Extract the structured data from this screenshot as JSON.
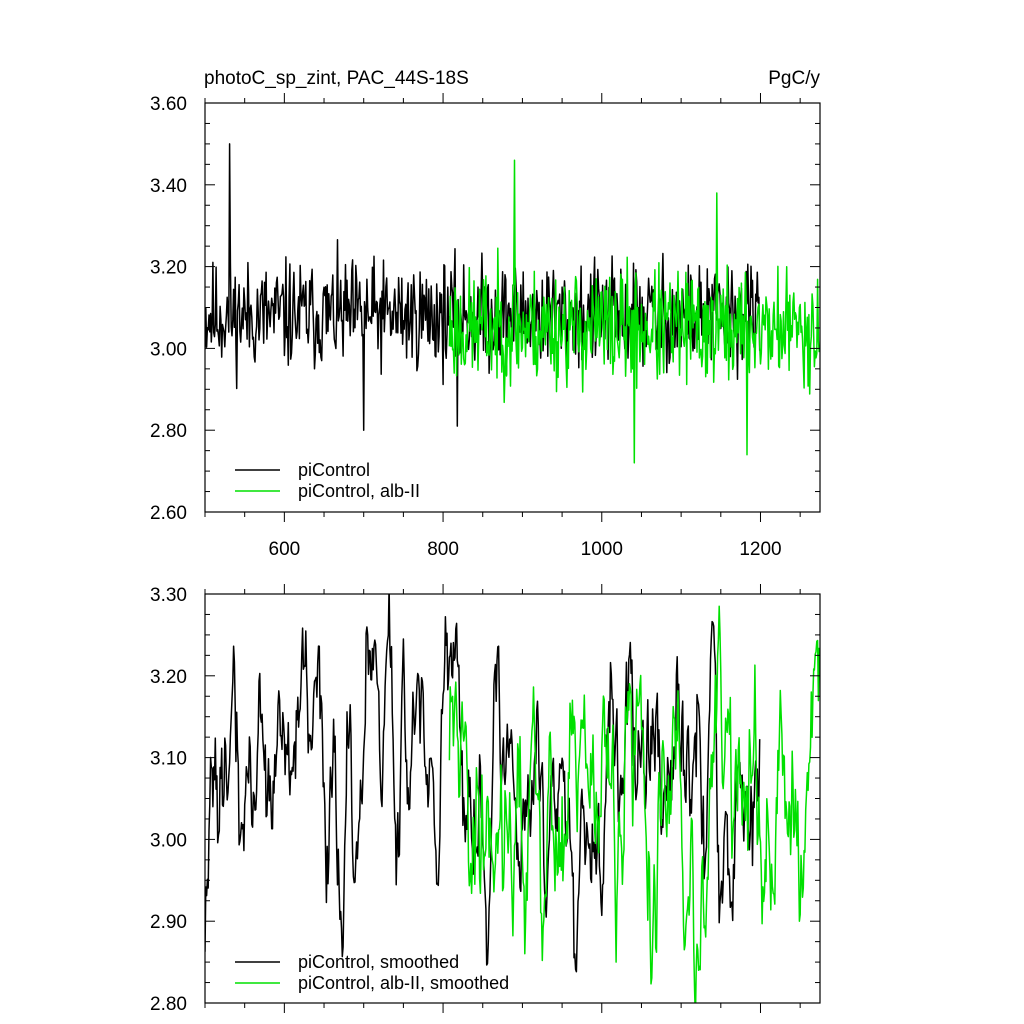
{
  "chart_data": [
    {
      "type": "line",
      "title": "photoC_sp_zint, PAC_44S-18S",
      "units": "PgC/y",
      "xlim": [
        500,
        1275
      ],
      "ylim": [
        2.6,
        3.6
      ],
      "x_ticks": [
        600,
        800,
        1000,
        1200
      ],
      "x_tick_labels": [
        "600",
        "800",
        "1000",
        "1200"
      ],
      "y_ticks": [
        2.6,
        2.8,
        3.0,
        3.2,
        3.4,
        3.6
      ],
      "y_tick_labels": [
        "2.60",
        "2.80",
        "3.00",
        "3.20",
        "3.40",
        "3.60"
      ],
      "legend_position": "bottom-left",
      "series": [
        {
          "name": "piControl",
          "color": "#000000",
          "x_start": 500,
          "x_end": 1199,
          "mean": 3.08,
          "amplitude": 0.13,
          "spikes": [
            [
              531,
              3.5
            ],
            [
              700,
              2.8
            ],
            [
              818,
              2.81
            ]
          ],
          "seed": 11
        },
        {
          "name": "piControl, alb-II",
          "color": "#00e000",
          "x_start": 808,
          "x_end": 1274,
          "mean": 3.05,
          "amplitude": 0.14,
          "spikes": [
            [
              890,
              3.46
            ],
            [
              1041,
              2.72
            ],
            [
              1183,
              2.74
            ],
            [
              1145,
              3.38
            ]
          ],
          "seed": 23
        }
      ]
    },
    {
      "type": "line",
      "xlim": [
        500,
        1275
      ],
      "ylim": [
        2.8,
        3.3
      ],
      "x_ticks": [
        600,
        800,
        1000,
        1200
      ],
      "y_ticks": [
        2.8,
        2.9,
        3.0,
        3.1,
        3.2,
        3.3
      ],
      "y_tick_labels": [
        "2.80",
        "2.90",
        "3.00",
        "3.10",
        "3.20",
        "3.30"
      ],
      "legend_position": "bottom-left",
      "series": [
        {
          "name": "piControl, smoothed",
          "color": "#000000",
          "x_start": 500,
          "x_end": 1199,
          "mean": 3.08,
          "amplitude": 0.11,
          "spikes": [
            [
              750,
              3.245
            ],
            [
              1140,
              3.265
            ],
            [
              930,
              2.905
            ]
          ],
          "seed": 37
        },
        {
          "name": "piControl, alb-II, smoothed",
          "color": "#00e000",
          "x_start": 808,
          "x_end": 1274,
          "mean": 3.05,
          "amplitude": 0.12,
          "spikes": [
            [
              1148,
              3.285
            ],
            [
              1018,
              2.85
            ],
            [
              1104,
              2.865
            ]
          ],
          "seed": 41
        }
      ]
    }
  ]
}
